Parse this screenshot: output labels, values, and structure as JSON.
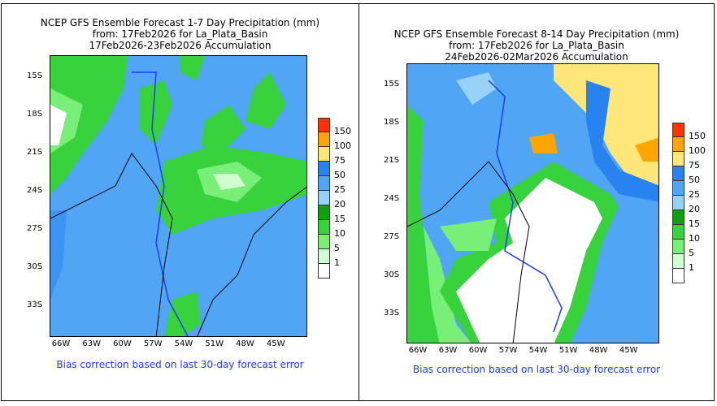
{
  "panels": [
    {
      "title": [
        "NCEP GFS Ensemble Forecast 1-7 Day Precipitation (mm)",
        "from: 17Feb2026   for La_Plata_Basin",
        "17Feb2026-23Feb2026 Accumulation"
      ],
      "note": "Bias correction based on last 30-day forecast error"
    },
    {
      "title": [
        "NCEP GFS Ensemble Forecast 8-14 Day Precipitation (mm)",
        "from: 17Feb2026   for La_Plata_Basin",
        "24Feb2026-02Mar2026 Accumulation"
      ],
      "note": "Bias correction based on last 30-day forecast error"
    }
  ],
  "lat_ticks": [
    "15S",
    "18S",
    "21S",
    "24S",
    "27S",
    "30S",
    "33S"
  ],
  "lon_ticks": [
    "66W",
    "63W",
    "60W",
    "57W",
    "54W",
    "51W",
    "48W",
    "45W"
  ],
  "legend": {
    "labels": [
      "150",
      "100",
      "75",
      "50",
      "25",
      "20",
      "15",
      "10",
      "5",
      "1"
    ],
    "colors": [
      "#ff3200",
      "#ffa500",
      "#ffe678",
      "#2882f0",
      "#50a5f5",
      "#96d2fa",
      "#0fa00f",
      "#37d23c",
      "#78f078",
      "#d2ffd2",
      "#ffffff"
    ]
  }
}
